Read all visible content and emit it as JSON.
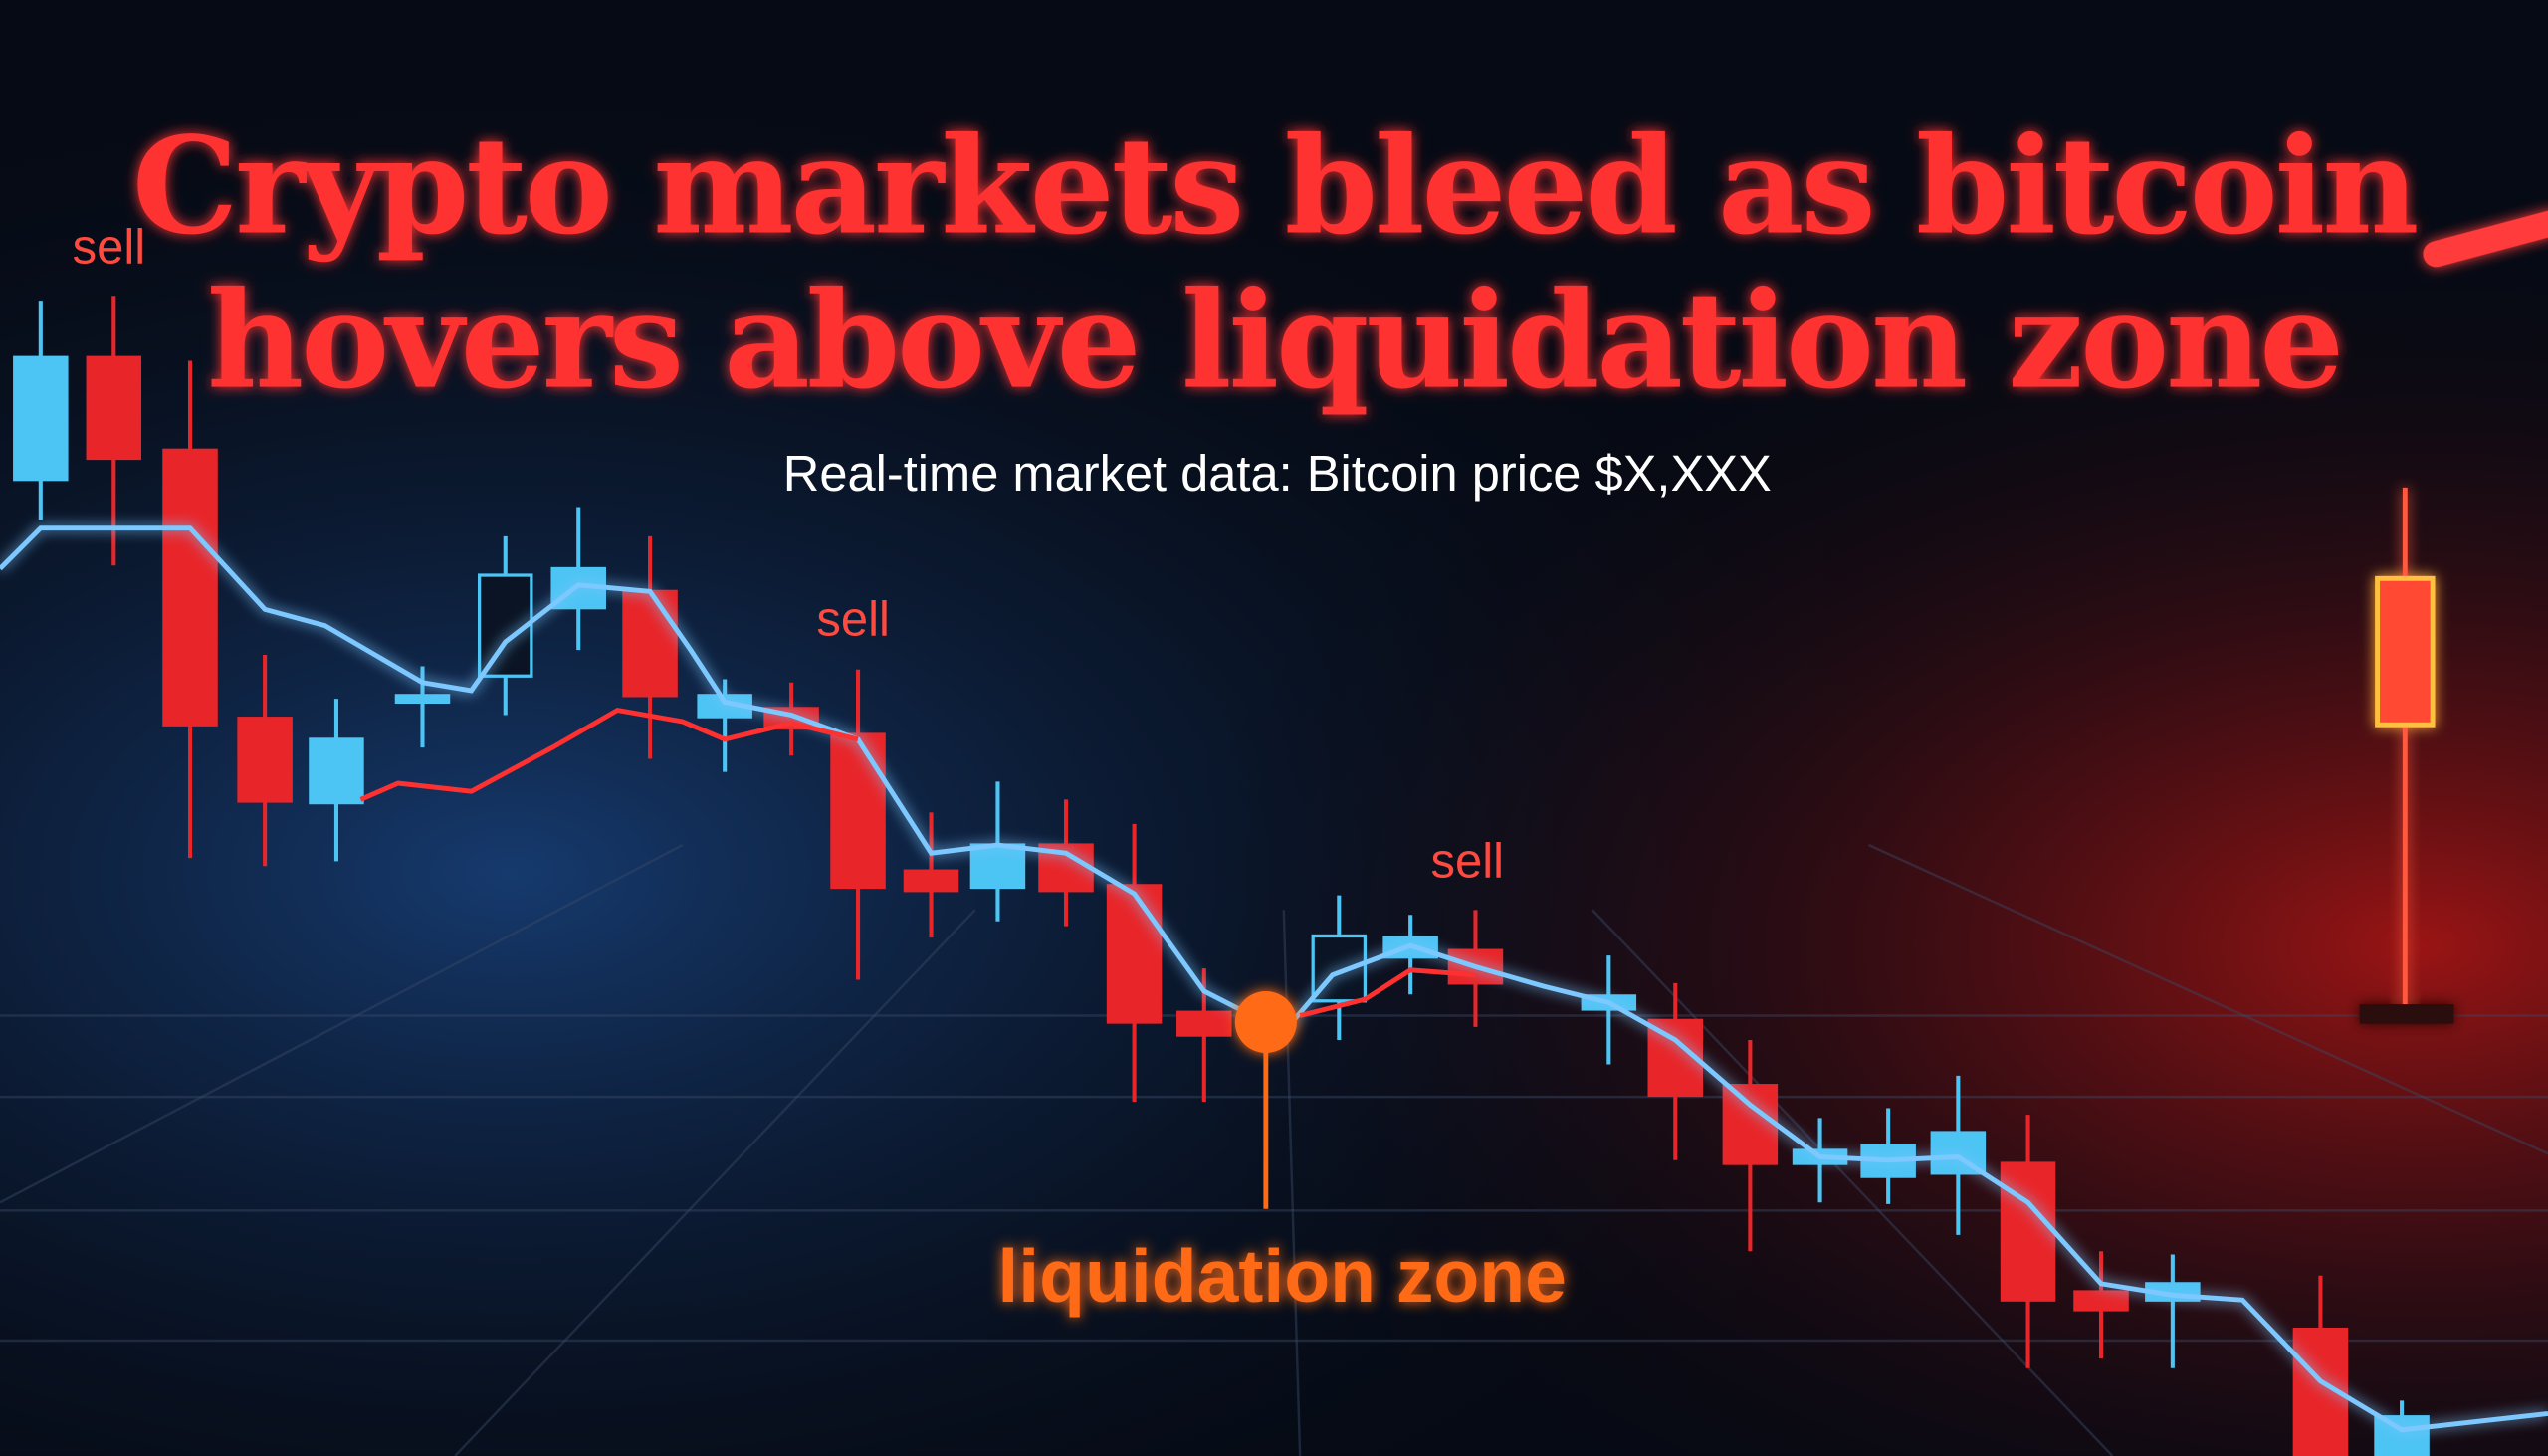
{
  "header": {
    "title_lines": [
      "Crypto markets bleed as bitcoin",
      "hovers above liquidation zone"
    ],
    "subtitle": "Real-time market data: Bitcoin price $X,XXX"
  },
  "annotations": {
    "sell_labels": [
      "sell",
      "sell",
      "sell"
    ],
    "zone_label": "liquidation zone"
  }
}
